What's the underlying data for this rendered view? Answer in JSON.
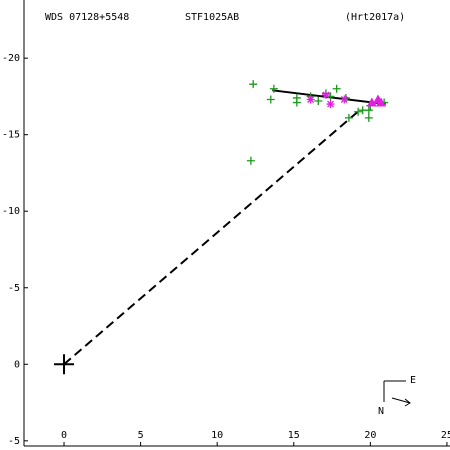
{
  "chart_data": {
    "type": "scatter",
    "title_left": "WDS 07128+5548",
    "title_center": "STF1025AB",
    "title_right": "(Hrt2017a)",
    "compass_e": "E",
    "compass_n": "N",
    "xlim": [
      -4.18,
      25.2
    ],
    "ylim": [
      -5.6,
      23.8
    ],
    "xticks": [
      0,
      5,
      10,
      15,
      20,
      25
    ],
    "yticks": [
      -5,
      0,
      {
        "value": 5,
        "label": "-5"
      },
      {
        "value": 10,
        "label": "-10"
      },
      {
        "value": 15,
        "label": "-15"
      },
      {
        "value": 20,
        "label": "-20"
      }
    ],
    "series": [
      {
        "marker": "dashed",
        "color": "#000000",
        "x": [
          0,
          19.3
        ],
        "y": [
          0,
          16.6
        ]
      },
      {
        "marker": "line",
        "color": "#000000",
        "x": [
          13.6,
          21.0
        ],
        "y": [
          17.9,
          17.0
        ]
      },
      {
        "marker": "cross",
        "color": "#000000",
        "x": [
          0
        ],
        "y": [
          0
        ]
      },
      {
        "marker": "plus",
        "color": "#1a9a1a",
        "x": [
          12.35,
          13.5,
          13.7,
          12.2,
          15.2,
          15.2,
          16.1,
          16.6,
          17.1,
          17.4,
          17.8,
          18.4,
          18.6,
          19.2,
          19.5,
          19.9,
          19.9,
          20.0,
          20.5,
          20.9
        ],
        "y": [
          18.3,
          17.3,
          18.0,
          13.3,
          17.4,
          17.1,
          17.5,
          17.2,
          17.7,
          17.5,
          18.0,
          17.4,
          16.1,
          16.5,
          16.6,
          16.1,
          16.6,
          16.9,
          17.1,
          17.1
        ]
      },
      {
        "marker": "asterisk",
        "color": "#e020e0",
        "x": [
          16.1,
          17.4,
          18.3,
          17.1
        ],
        "y": [
          17.3,
          17.0,
          17.3,
          17.6
        ]
      },
      {
        "marker": "triangle",
        "color": "#e020e0",
        "x": [
          20.1,
          20.5,
          20.7
        ],
        "y": [
          17.1,
          17.3,
          17.1
        ]
      }
    ]
  }
}
